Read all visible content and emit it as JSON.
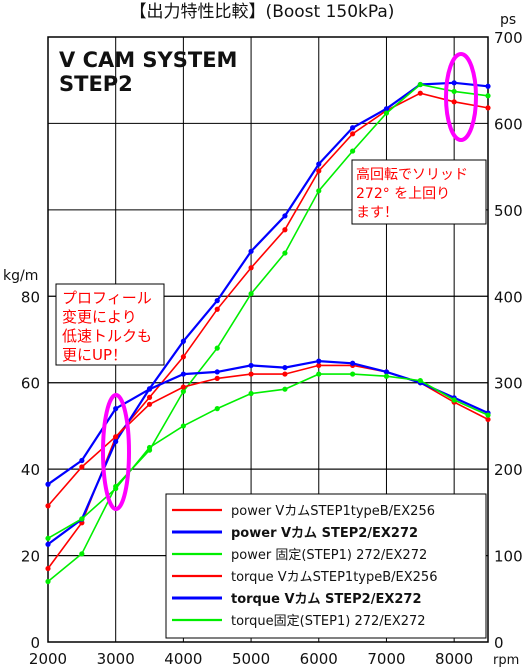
{
  "chart_data": {
    "type": "line",
    "title": "【出力特性比較】(Boost 150kPa)",
    "subtitle_lines": [
      "V CAM SYSTEM",
      "STEP2"
    ],
    "x": [
      2000,
      2500,
      3000,
      3500,
      4000,
      4500,
      5000,
      5500,
      6000,
      6500,
      7000,
      7500,
      8000,
      8500
    ],
    "x_ticks": [
      "2000",
      "3000",
      "4000",
      "5000",
      "6000",
      "7000",
      "8000"
    ],
    "x_unit": "rpm",
    "xlim": [
      2000,
      8500
    ],
    "left_axis": {
      "unit": "kg/m",
      "ticks": [
        "0",
        "20",
        "40",
        "60",
        "80"
      ],
      "ylim": [
        0,
        140
      ]
    },
    "right_axis": {
      "unit": "ps",
      "ticks": [
        "0",
        "100",
        "200",
        "300",
        "400",
        "500",
        "600",
        "700"
      ],
      "ylim": [
        0,
        700
      ]
    },
    "grid": true,
    "series": [
      {
        "name": "power VカムSTEP1typeB/EX256",
        "axis": "right",
        "color": "#ff0000",
        "bold": false,
        "values": [
          85,
          138,
          237,
          283,
          330,
          385,
          433,
          477,
          545,
          588,
          615,
          635,
          625,
          618
        ]
      },
      {
        "name": "power Vカム STEP2/EX272",
        "axis": "right",
        "color": "#0000ff",
        "bold": true,
        "values": [
          113,
          142,
          232,
          293,
          348,
          395,
          452,
          493,
          553,
          595,
          617,
          645,
          647,
          643
        ]
      },
      {
        "name": "power 固定(STEP1) 272/EX272",
        "axis": "right",
        "color": "#00ee00",
        "bold": false,
        "values": [
          70,
          102,
          180,
          222,
          290,
          340,
          403,
          450,
          522,
          568,
          612,
          645,
          637,
          632
        ]
      },
      {
        "name": "torque VカムSTEP1typeB/EX256",
        "axis": "left",
        "color": "#ff0000",
        "bold": false,
        "values": [
          31.5,
          40.5,
          47.5,
          55.0,
          59.0,
          61.0,
          62.0,
          62.0,
          64.0,
          64.0,
          62.5,
          60.0,
          55.5,
          51.5
        ]
      },
      {
        "name": "torque Vカム STEP2/EX272",
        "axis": "left",
        "color": "#0000ff",
        "bold": true,
        "values": [
          36.5,
          42.0,
          54.0,
          58.5,
          62.0,
          62.5,
          64.0,
          63.5,
          65.0,
          64.5,
          62.5,
          60.0,
          56.5,
          53.0
        ]
      },
      {
        "name": "torque固定(STEP1) 272/EX272",
        "axis": "left",
        "color": "#00ee00",
        "bold": false,
        "values": [
          24.0,
          28.5,
          35.5,
          45.0,
          50.0,
          54.0,
          57.5,
          58.5,
          62.0,
          62.0,
          61.5,
          60.5,
          56.0,
          52.5
        ]
      }
    ],
    "annotations": [
      {
        "lines": [
          "プロフィール",
          "変更により",
          "低速トルクも",
          "更にUP！"
        ],
        "color": "#ff0000"
      },
      {
        "lines": [
          "高回転でソリッド",
          "272° を上回り",
          "ます！"
        ],
        "color": "#ff0000"
      }
    ],
    "highlight_color": "#ff00ff"
  }
}
